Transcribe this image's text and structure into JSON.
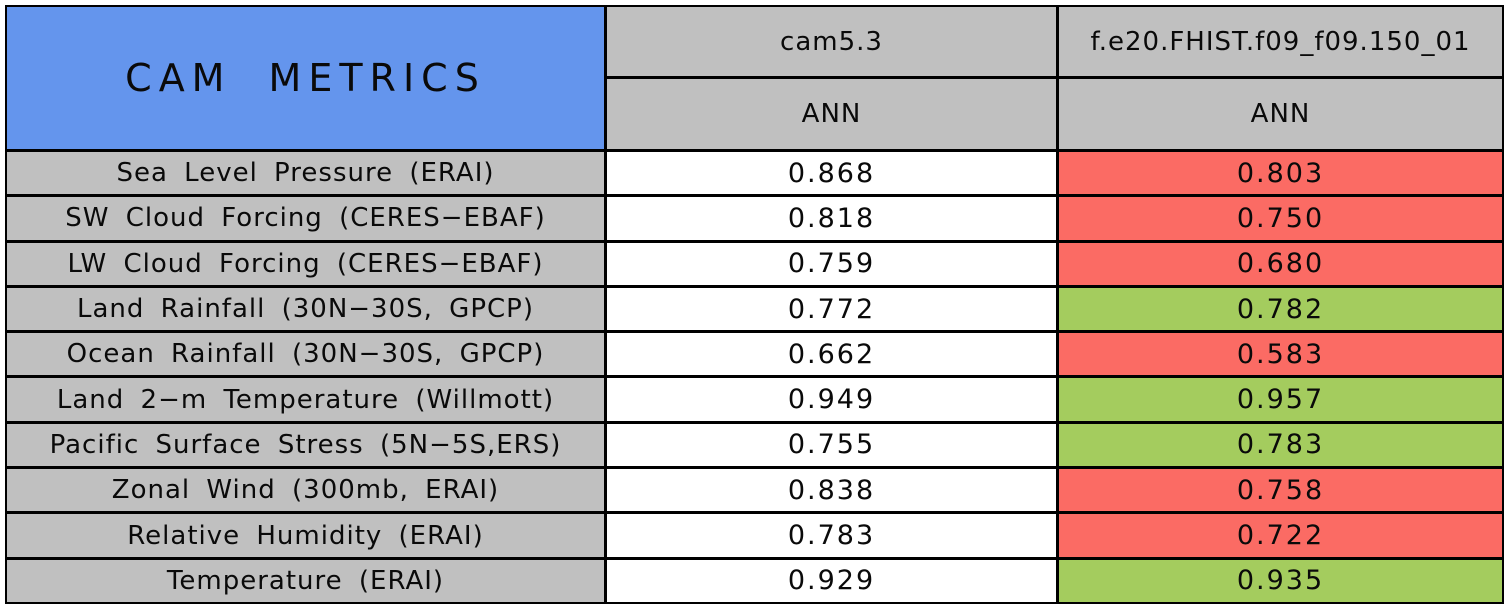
{
  "table": {
    "title": "CAM METRICS",
    "columns": [
      {
        "model": "cam5.3",
        "season": "ANN"
      },
      {
        "model": "f.e20.FHIST.f09_f09.150_01",
        "season": "ANN"
      }
    ],
    "rows": [
      {
        "metric": "Sea Level Pressure (ERAI)",
        "baseline": "0.868",
        "test": "0.803",
        "status": "worse"
      },
      {
        "metric": "SW Cloud Forcing (CERES−EBAF)",
        "baseline": "0.818",
        "test": "0.750",
        "status": "worse"
      },
      {
        "metric": "LW Cloud Forcing (CERES−EBAF)",
        "baseline": "0.759",
        "test": "0.680",
        "status": "worse"
      },
      {
        "metric": "Land Rainfall (30N−30S, GPCP)",
        "baseline": "0.772",
        "test": "0.782",
        "status": "better"
      },
      {
        "metric": "Ocean Rainfall (30N−30S, GPCP)",
        "baseline": "0.662",
        "test": "0.583",
        "status": "worse"
      },
      {
        "metric": "Land 2−m Temperature (Willmott)",
        "baseline": "0.949",
        "test": "0.957",
        "status": "better"
      },
      {
        "metric": "Pacific Surface Stress (5N−5S,ERS)",
        "baseline": "0.755",
        "test": "0.783",
        "status": "better"
      },
      {
        "metric": "Zonal Wind (300mb, ERAI)",
        "baseline": "0.838",
        "test": "0.758",
        "status": "worse"
      },
      {
        "metric": "Relative Humidity (ERAI)",
        "baseline": "0.783",
        "test": "0.722",
        "status": "worse"
      },
      {
        "metric": "Temperature (ERAI)",
        "baseline": "0.929",
        "test": "0.935",
        "status": "better"
      }
    ]
  },
  "colors": {
    "header_blue": "#6495ED",
    "header_gray": "#C0C0C0",
    "better_green": "#A4CC5E",
    "worse_red": "#FB6B64",
    "neutral_white": "#FFFFFF",
    "border_black": "#000000"
  },
  "chart_data": {
    "type": "table",
    "title": "CAM METRICS",
    "categories": [
      "Sea Level Pressure (ERAI)",
      "SW Cloud Forcing (CERES-EBAF)",
      "LW Cloud Forcing (CERES-EBAF)",
      "Land Rainfall (30N-30S, GPCP)",
      "Ocean Rainfall (30N-30S, GPCP)",
      "Land 2-m Temperature (Willmott)",
      "Pacific Surface Stress (5N-5S,ERS)",
      "Zonal Wind (300mb, ERAI)",
      "Relative Humidity (ERAI)",
      "Temperature (ERAI)"
    ],
    "series": [
      {
        "name": "cam5.3 ANN",
        "values": [
          0.868,
          0.818,
          0.759,
          0.772,
          0.662,
          0.949,
          0.755,
          0.838,
          0.783,
          0.929
        ]
      },
      {
        "name": "f.e20.FHIST.f09_f09.150_01 ANN",
        "values": [
          0.803,
          0.75,
          0.68,
          0.782,
          0.583,
          0.957,
          0.783,
          0.758,
          0.722,
          0.935
        ]
      }
    ],
    "cell_highlight": [
      "worse",
      "worse",
      "worse",
      "better",
      "worse",
      "better",
      "better",
      "worse",
      "worse",
      "better"
    ],
    "layout": "second series cells colored red when worse than baseline, green when better"
  }
}
